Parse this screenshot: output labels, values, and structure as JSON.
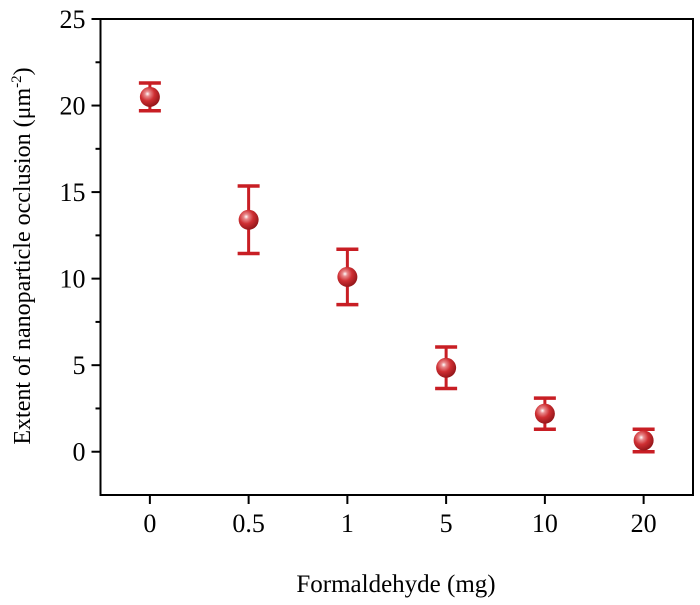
{
  "chart_data": {
    "type": "scatter",
    "title": "",
    "xlabel": "Formaldehyde (mg)",
    "ylabel_main": "Extent of nanoparticle occlusion (μm",
    "ylabel_sup": "-2",
    "ylabel_end": ")",
    "categories": [
      "0",
      "0.5",
      "1",
      "5",
      "10",
      "20"
    ],
    "values": [
      20.5,
      13.4,
      10.1,
      4.85,
      2.2,
      0.65
    ],
    "errors": [
      0.8,
      1.95,
      1.6,
      1.2,
      0.9,
      0.65
    ],
    "ylim": [
      -2.5,
      25
    ],
    "yticks": [
      0,
      5,
      10,
      15,
      20,
      25
    ],
    "ytick_labels": [
      "0",
      "5",
      "10",
      "15",
      "20",
      "25"
    ],
    "yminor": [
      2.5,
      7.5,
      12.5,
      17.5,
      22.5
    ],
    "grid": false,
    "marker_color": "#c8262b",
    "errorbar_color": "#c81e24"
  }
}
